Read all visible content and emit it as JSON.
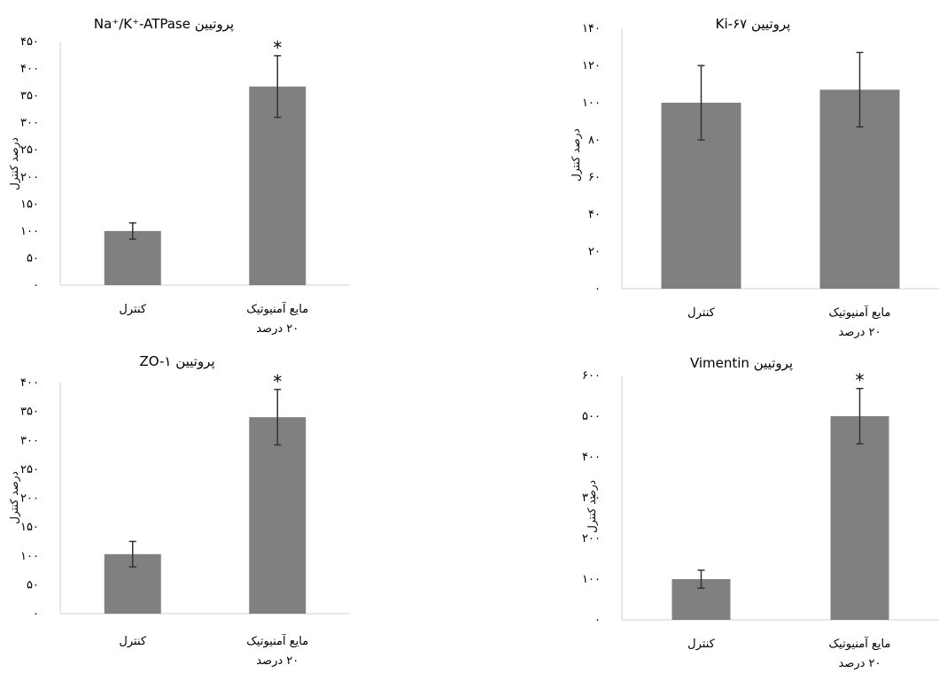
{
  "colors": {
    "bar": "#808080",
    "axis": "#d9d9d9",
    "error": "#333333"
  },
  "chart_data": [
    {
      "type": "bar",
      "title": "پروتیین Na⁺/K⁺-ATPase",
      "ylabel": "درصد کنترل",
      "categories": [
        "کنترل",
        "مایع آمنیوتیک|۲۰ درصد"
      ],
      "values": [
        100,
        367
      ],
      "errors": [
        15,
        57
      ],
      "significant": [
        false,
        true
      ],
      "ylim": [
        0,
        450
      ],
      "yticks": [
        0,
        50,
        100,
        150,
        200,
        250,
        300,
        350,
        400,
        450
      ],
      "ytick_labels": [
        "۰",
        "۵۰",
        "۱۰۰",
        "۱۵۰",
        "۲۰۰",
        "۲۵۰",
        "۳۰۰",
        "۳۵۰",
        "۴۰۰",
        "۴۵۰"
      ],
      "grid": false
    },
    {
      "type": "bar",
      "title": "پروتیین Ki-۶۷",
      "ylabel": "درصد کنترل",
      "categories": [
        "کنترل",
        "مایع آمنیوتیک|۲۰ درصد"
      ],
      "values": [
        100,
        107
      ],
      "errors": [
        20,
        20
      ],
      "significant": [
        false,
        false
      ],
      "ylim": [
        0,
        140
      ],
      "yticks": [
        0,
        20,
        40,
        60,
        80,
        100,
        120,
        140
      ],
      "ytick_labels": [
        "۰",
        "۲۰",
        "۴۰",
        "۶۰",
        "۸۰",
        "۱۰۰",
        "۱۲۰",
        "۱۴۰"
      ],
      "grid": false
    },
    {
      "type": "bar",
      "title": "پروتیین ZO-۱",
      "ylabel": "درصد کنترل",
      "categories": [
        "کنترل",
        "مایع آمنیوتیک|۲۰ درصد"
      ],
      "values": [
        103,
        340
      ],
      "errors": [
        22,
        48
      ],
      "significant": [
        false,
        true
      ],
      "ylim": [
        0,
        400
      ],
      "yticks": [
        0,
        50,
        100,
        150,
        200,
        250,
        300,
        350,
        400
      ],
      "ytick_labels": [
        "۰",
        "۵۰",
        "۱۰۰",
        "۱۵۰",
        "۲۰۰",
        "۲۵۰",
        "۳۰۰",
        "۳۵۰",
        "۴۰۰"
      ],
      "grid": false
    },
    {
      "type": "bar",
      "title": "پروتیین Vimentin",
      "ylabel": "درصد کنترل",
      "categories": [
        "کنترل",
        "مایع آمنیوتیک|۲۰ درصد"
      ],
      "values": [
        100,
        500
      ],
      "errors": [
        22,
        68
      ],
      "significant": [
        false,
        true
      ],
      "ylim": [
        0,
        600
      ],
      "yticks": [
        0,
        100,
        200,
        300,
        400,
        500,
        600
      ],
      "ytick_labels": [
        "۰",
        "۱۰۰",
        "۲۰۰",
        "۳۰۰",
        "۴۰۰",
        "۵۰۰",
        "۶۰۰"
      ],
      "grid": false
    }
  ]
}
